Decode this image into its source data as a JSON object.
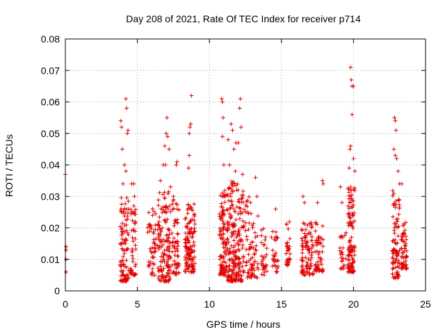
{
  "chart_data": {
    "type": "scatter",
    "title": "Day 208 of 2021, Rate Of TEC Index for receiver p714",
    "xlabel": "GPS time / hours",
    "ylabel": "ROTI / TECUs",
    "xlim": [
      0,
      25
    ],
    "ylim": [
      0,
      0.08
    ],
    "xticks": [
      0,
      5,
      10,
      15,
      20,
      25
    ],
    "yticks": [
      0,
      0.01,
      0.02,
      0.03,
      0.04,
      0.05,
      0.06,
      0.07,
      0.08
    ],
    "xtick_labels": [
      "0",
      "5",
      "10",
      "15",
      "20",
      "25"
    ],
    "ytick_labels": [
      "0",
      "0.01",
      "0.02",
      "0.03",
      "0.04",
      "0.05",
      "0.06",
      "0.07",
      "0.08"
    ],
    "grid": true,
    "marker": "+",
    "color": "#e00000",
    "series": [
      {
        "points": [
          [
            0.0,
            0.037
          ],
          [
            0.05,
            0.014
          ],
          [
            0.05,
            0.013
          ],
          [
            0.05,
            0.01
          ],
          [
            0.05,
            0.006
          ],
          [
            3.85,
            0.054
          ],
          [
            3.9,
            0.052
          ],
          [
            3.95,
            0.045
          ],
          [
            4.0,
            0.034
          ],
          [
            4.1,
            0.04
          ],
          [
            4.2,
            0.061
          ],
          [
            4.25,
            0.058
          ],
          [
            4.3,
            0.05
          ],
          [
            4.35,
            0.051
          ],
          [
            4.2,
            0.038
          ],
          [
            4.6,
            0.034
          ],
          [
            4.75,
            0.034
          ],
          [
            4.8,
            0.03
          ],
          [
            4.75,
            0.027
          ],
          [
            6.6,
            0.035
          ],
          [
            6.8,
            0.04
          ],
          [
            6.9,
            0.046
          ],
          [
            7.0,
            0.05
          ],
          [
            7.05,
            0.055
          ],
          [
            7.1,
            0.049
          ],
          [
            6.95,
            0.04
          ],
          [
            7.2,
            0.045
          ],
          [
            7.3,
            0.033
          ],
          [
            7.5,
            0.03
          ],
          [
            7.7,
            0.04
          ],
          [
            7.75,
            0.041
          ],
          [
            8.6,
            0.05
          ],
          [
            8.65,
            0.052
          ],
          [
            8.7,
            0.053
          ],
          [
            8.75,
            0.062
          ],
          [
            8.6,
            0.043
          ],
          [
            8.55,
            0.039
          ],
          [
            10.85,
            0.061
          ],
          [
            10.9,
            0.06
          ],
          [
            10.95,
            0.055
          ],
          [
            10.9,
            0.049
          ],
          [
            11.0,
            0.04
          ],
          [
            11.3,
            0.048
          ],
          [
            11.5,
            0.053
          ],
          [
            11.6,
            0.051
          ],
          [
            11.7,
            0.045
          ],
          [
            11.85,
            0.047
          ],
          [
            12.0,
            0.047
          ],
          [
            12.1,
            0.058
          ],
          [
            12.15,
            0.061
          ],
          [
            12.2,
            0.052
          ],
          [
            12.3,
            0.037
          ],
          [
            11.4,
            0.04
          ],
          [
            11.8,
            0.038
          ],
          [
            13.2,
            0.036
          ],
          [
            13.3,
            0.03
          ],
          [
            14.6,
            0.026
          ],
          [
            16.5,
            0.03
          ],
          [
            16.6,
            0.028
          ],
          [
            17.5,
            0.028
          ],
          [
            17.85,
            0.035
          ],
          [
            17.9,
            0.034
          ],
          [
            19.1,
            0.033
          ],
          [
            19.2,
            0.028
          ],
          [
            19.8,
            0.071
          ],
          [
            19.85,
            0.067
          ],
          [
            19.9,
            0.065
          ],
          [
            20.0,
            0.065
          ],
          [
            19.9,
            0.056
          ],
          [
            19.8,
            0.046
          ],
          [
            19.75,
            0.045
          ],
          [
            20.0,
            0.042
          ],
          [
            20.1,
            0.038
          ],
          [
            19.7,
            0.039
          ],
          [
            22.85,
            0.055
          ],
          [
            22.9,
            0.054
          ],
          [
            22.95,
            0.051
          ],
          [
            22.8,
            0.045
          ],
          [
            22.9,
            0.043
          ],
          [
            23.0,
            0.042
          ],
          [
            23.1,
            0.038
          ],
          [
            23.2,
            0.034
          ],
          [
            23.35,
            0.034
          ],
          [
            23.15,
            0.029
          ]
        ],
        "clusters": [
          {
            "x_start": 3.8,
            "x_end": 4.4,
            "y_min": 0.003,
            "y_max": 0.03,
            "count": 95
          },
          {
            "x_start": 4.5,
            "x_end": 4.9,
            "y_min": 0.005,
            "y_max": 0.026,
            "count": 45
          },
          {
            "x_start": 5.7,
            "x_end": 6.3,
            "y_min": 0.005,
            "y_max": 0.027,
            "count": 50
          },
          {
            "x_start": 6.4,
            "x_end": 7.3,
            "y_min": 0.003,
            "y_max": 0.032,
            "count": 140
          },
          {
            "x_start": 7.4,
            "x_end": 7.9,
            "y_min": 0.005,
            "y_max": 0.03,
            "count": 60
          },
          {
            "x_start": 8.3,
            "x_end": 9.0,
            "y_min": 0.006,
            "y_max": 0.028,
            "count": 130
          },
          {
            "x_start": 10.7,
            "x_end": 11.2,
            "y_min": 0.005,
            "y_max": 0.032,
            "count": 100
          },
          {
            "x_start": 11.2,
            "x_end": 12.4,
            "y_min": 0.003,
            "y_max": 0.035,
            "count": 230
          },
          {
            "x_start": 12.5,
            "x_end": 13.4,
            "y_min": 0.004,
            "y_max": 0.03,
            "count": 75
          },
          {
            "x_start": 13.6,
            "x_end": 14.0,
            "y_min": 0.005,
            "y_max": 0.02,
            "count": 30
          },
          {
            "x_start": 14.3,
            "x_end": 14.8,
            "y_min": 0.006,
            "y_max": 0.02,
            "count": 30
          },
          {
            "x_start": 15.3,
            "x_end": 15.6,
            "y_min": 0.008,
            "y_max": 0.022,
            "count": 30
          },
          {
            "x_start": 16.4,
            "x_end": 17.2,
            "y_min": 0.005,
            "y_max": 0.022,
            "count": 90
          },
          {
            "x_start": 17.3,
            "x_end": 17.9,
            "y_min": 0.006,
            "y_max": 0.022,
            "count": 55
          },
          {
            "x_start": 19.0,
            "x_end": 19.5,
            "y_min": 0.007,
            "y_max": 0.019,
            "count": 25
          },
          {
            "x_start": 19.6,
            "x_end": 20.1,
            "y_min": 0.006,
            "y_max": 0.034,
            "count": 110
          },
          {
            "x_start": 22.7,
            "x_end": 23.2,
            "y_min": 0.004,
            "y_max": 0.032,
            "count": 85
          },
          {
            "x_start": 23.3,
            "x_end": 23.7,
            "y_min": 0.007,
            "y_max": 0.022,
            "count": 60
          }
        ]
      }
    ]
  }
}
